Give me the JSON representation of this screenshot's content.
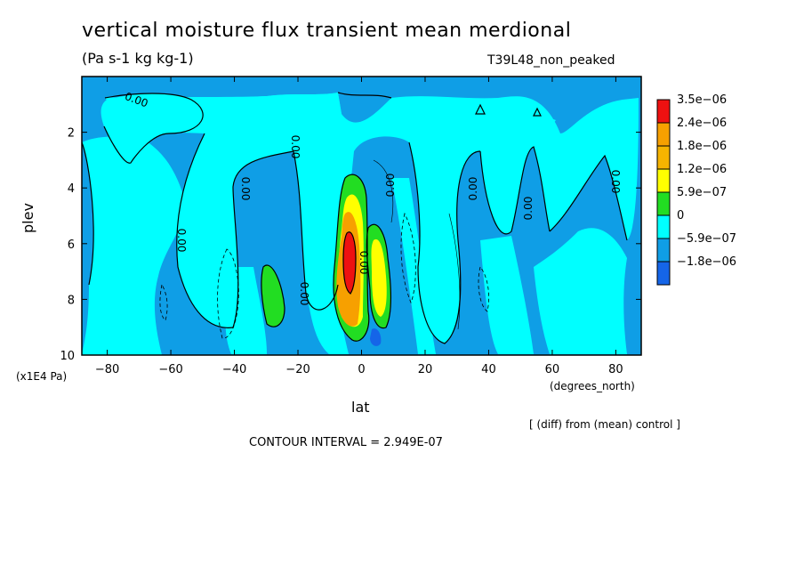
{
  "header": {
    "title": "vertical moisture flux transient mean merdional",
    "units": "(Pa s-1 kg kg-1)",
    "run_label": "T39L48_non_peaked"
  },
  "footer": {
    "diff_note": "[ (diff) from (mean) control ]",
    "contour_interval": "CONTOUR INTERVAL = 2.949E-07"
  },
  "chart_data": {
    "type": "heatmap",
    "title": "vertical moisture flux transient mean merdional",
    "subtitle": "(Pa s-1 kg kg-1)",
    "xlabel": "lat",
    "x_units": "(degrees_north)",
    "ylabel": "plev",
    "y_units": "(x1E4 Pa)",
    "xlim": [
      -88,
      88
    ],
    "ylim": [
      10,
      0
    ],
    "x_ticks": [
      -80,
      -60,
      -40,
      -20,
      0,
      20,
      40,
      60,
      80
    ],
    "x_tick_labels": [
      "−80",
      "−60",
      "−40",
      "−20",
      "0",
      "20",
      "40",
      "60",
      "80"
    ],
    "y_ticks": [
      2,
      4,
      6,
      8,
      10
    ],
    "y_tick_labels": [
      "2",
      "4",
      "6",
      "8",
      "10"
    ],
    "colorbar": {
      "labels": [
        "3.5e−06",
        "2.4e−06",
        "1.8e−06",
        "1.2e−06",
        "5.9e−07",
        "0",
        "−5.9e−07",
        "−1.8e−06"
      ],
      "colors": [
        "#ee1111",
        "#f7a000",
        "#f6b400",
        "#ffff00",
        "#22dd22",
        "#00ffff",
        "#0f9ee6",
        "#1565e8"
      ]
    },
    "contour_labels": [
      "0.00",
      "0.00",
      "0.00",
      "0.00",
      "0.00",
      "0.00",
      "0.00",
      "0.00",
      "0.00",
      "0.00"
    ],
    "colors": {
      "negative_background": "#0f9ee6",
      "near_zero": "#00ffff",
      "strong_negative": "#1565e8",
      "positive_low": "#22dd22",
      "positive_mid": "#ffff00",
      "positive_high": "#f7a000",
      "positive_max": "#ee1111"
    }
  }
}
